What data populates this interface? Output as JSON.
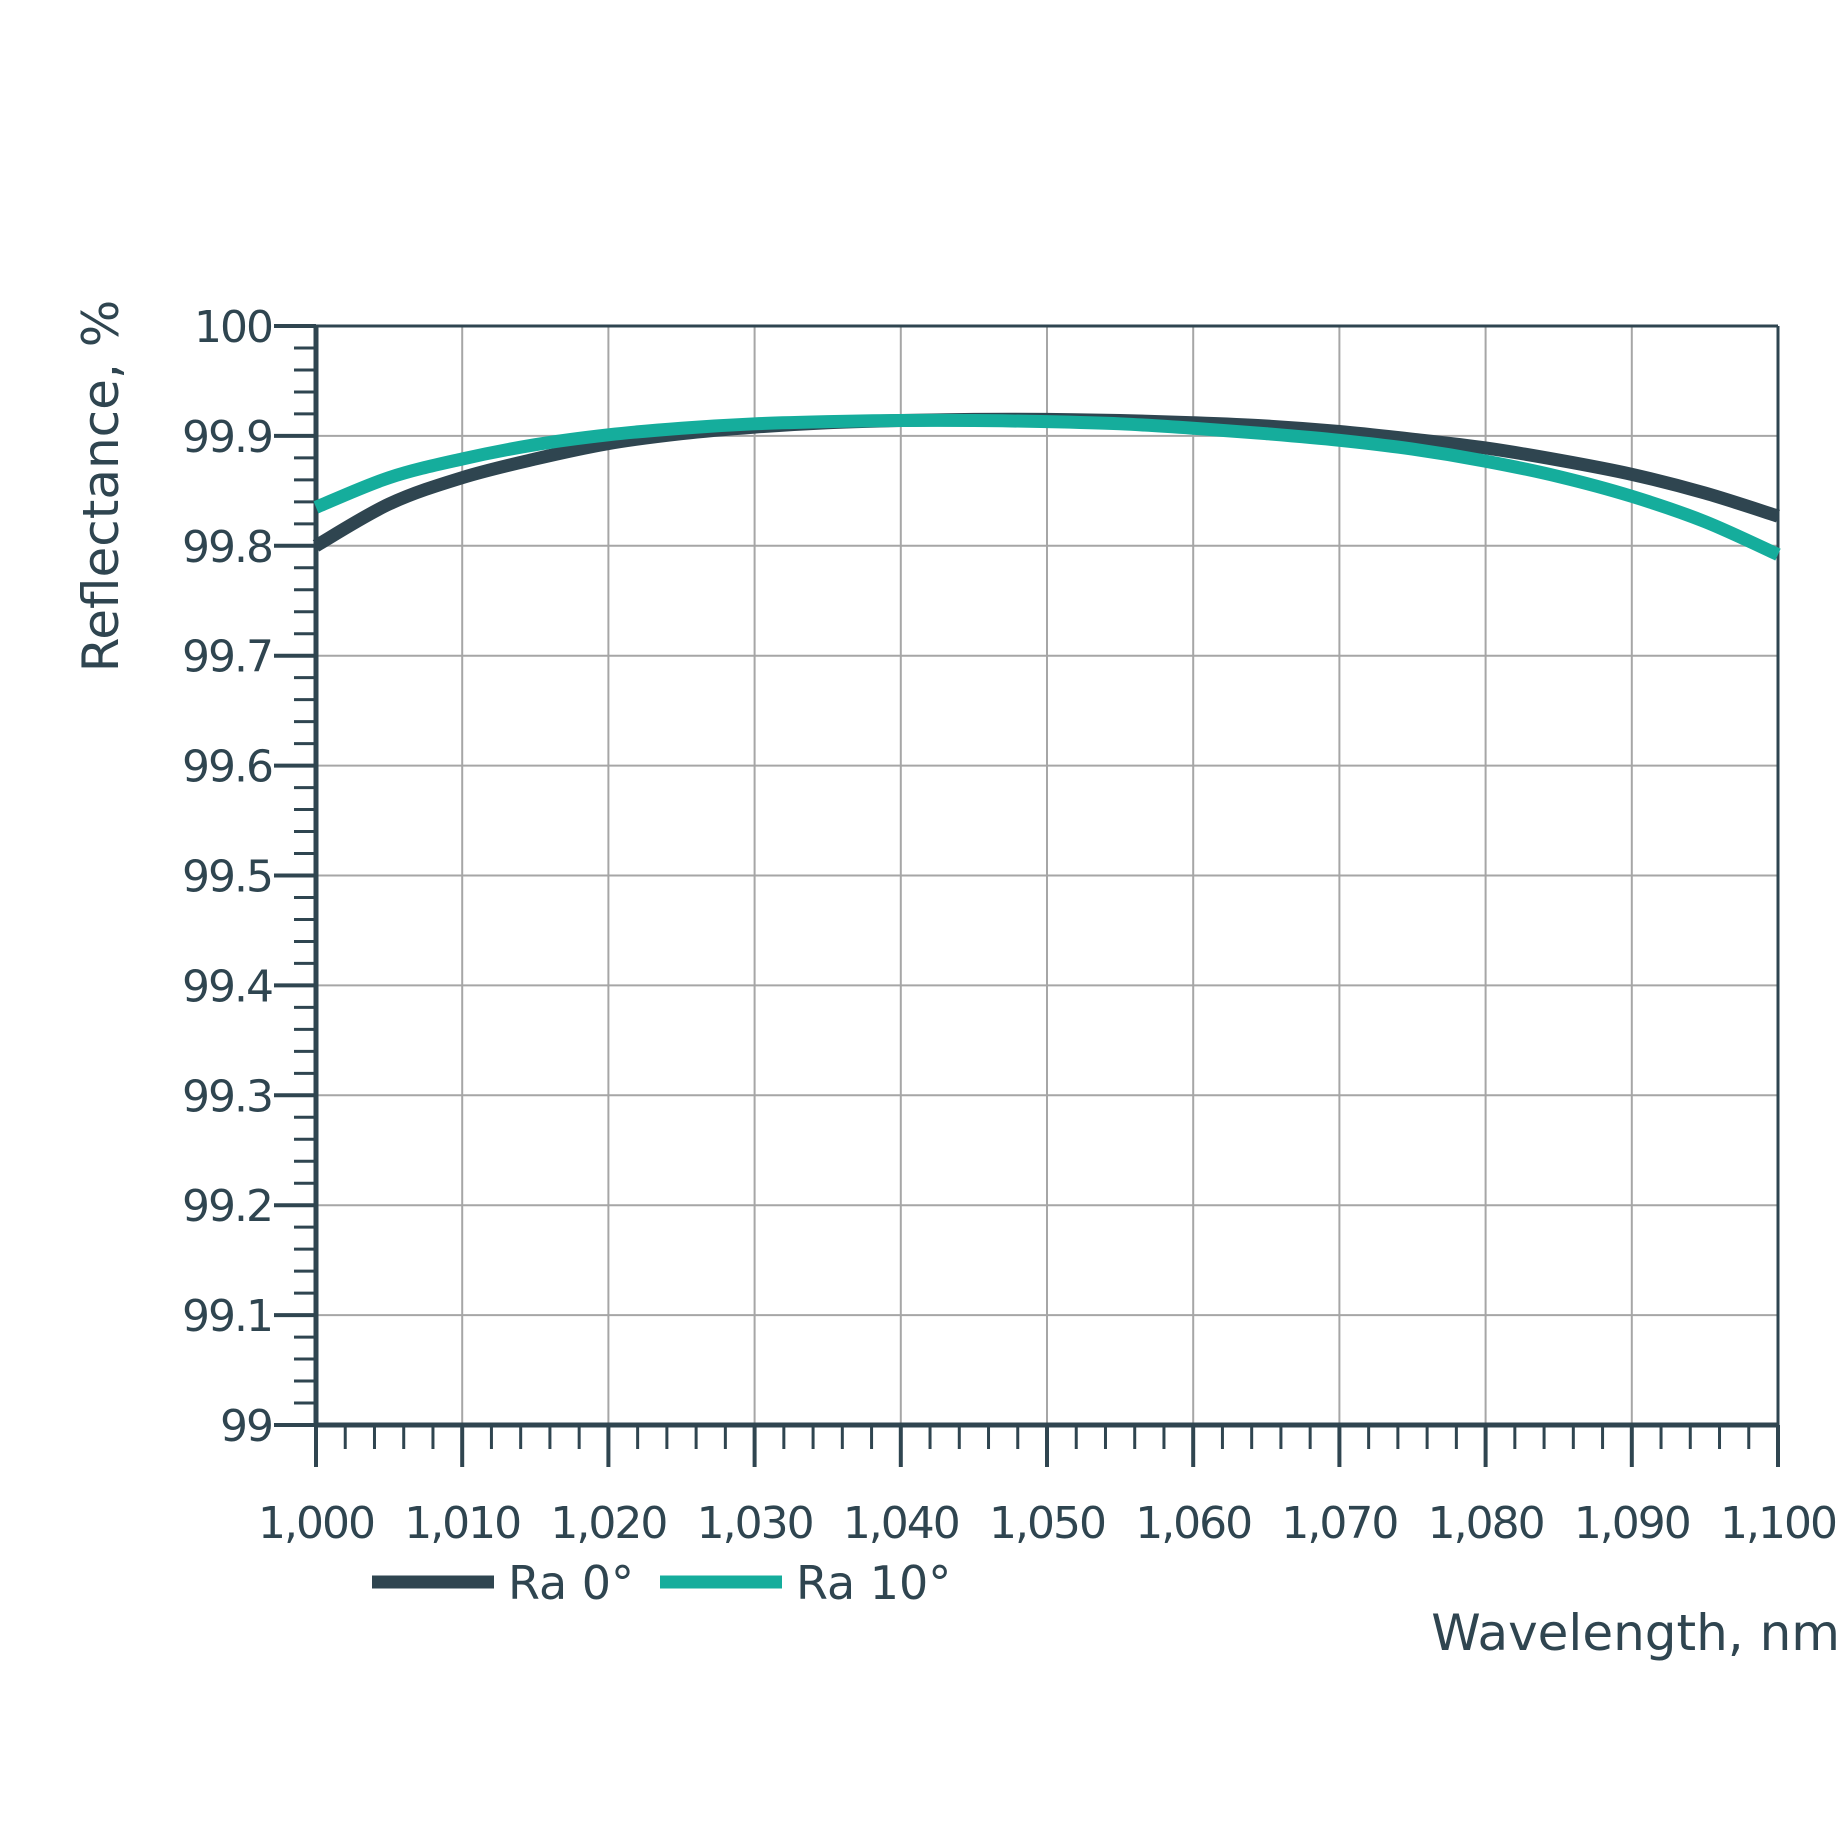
{
  "chart_data": {
    "type": "line",
    "xlabel": "Wavelength, nm",
    "ylabel": "Reflectance, %",
    "xlim": [
      1000,
      1100
    ],
    "ylim": [
      99,
      100
    ],
    "x_ticks": [
      1000,
      1010,
      1020,
      1030,
      1040,
      1050,
      1060,
      1070,
      1080,
      1090,
      1100
    ],
    "x_tick_labels": [
      "1,000",
      "1,010",
      "1,020",
      "1,030",
      "1,040",
      "1,050",
      "1,060",
      "1,070",
      "1,080",
      "1,090",
      "1,100"
    ],
    "y_ticks": [
      99,
      99.1,
      99.2,
      99.3,
      99.4,
      99.5,
      99.6,
      99.7,
      99.8,
      99.9,
      100
    ],
    "y_tick_labels": [
      "99",
      "99.1",
      "99.2",
      "99.3",
      "99.4",
      "99.5",
      "99.6",
      "99.7",
      "99.8",
      "99.9",
      "100"
    ],
    "grid": true,
    "legend_position": "bottom-left",
    "series": [
      {
        "name": "Ra 0°",
        "color": "#2f4550",
        "x": [
          1000,
          1005,
          1010,
          1015,
          1020,
          1025,
          1030,
          1035,
          1040,
          1045,
          1050,
          1055,
          1060,
          1065,
          1070,
          1075,
          1080,
          1085,
          1090,
          1095,
          1100
        ],
        "y": [
          99.8,
          99.838,
          99.862,
          99.879,
          99.893,
          99.902,
          99.908,
          99.912,
          99.914,
          99.915,
          99.915,
          99.914,
          99.912,
          99.909,
          99.904,
          99.897,
          99.889,
          99.878,
          99.865,
          99.848,
          99.827
        ]
      },
      {
        "name": "Ra 10°",
        "color": "#15ad9c",
        "x": [
          1000,
          1005,
          1010,
          1015,
          1020,
          1025,
          1030,
          1035,
          1040,
          1045,
          1050,
          1055,
          1060,
          1065,
          1070,
          1075,
          1080,
          1085,
          1090,
          1095,
          1100
        ],
        "y": [
          99.835,
          99.862,
          99.879,
          99.892,
          99.901,
          99.907,
          99.911,
          99.913,
          99.914,
          99.914,
          99.913,
          99.911,
          99.907,
          99.902,
          99.896,
          99.888,
          99.877,
          99.863,
          99.845,
          99.822,
          99.792
        ]
      }
    ]
  }
}
